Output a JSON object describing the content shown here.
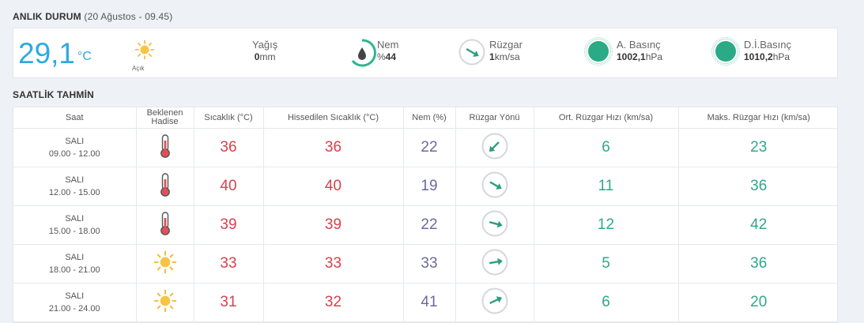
{
  "current": {
    "title": "ANLIK DURUM",
    "subtitle": "(20 Ağustos - 09.45)",
    "temp": "29,1",
    "temp_unit": "°C",
    "condition": "Açık",
    "precip_label": "Yağış",
    "precip_value": "0",
    "precip_unit": "mm",
    "humidity_label": "Nem",
    "humidity_prefix": "%",
    "humidity_value": "44",
    "wind_label": "Rüzgar",
    "wind_value": "1",
    "wind_unit": "km/sa",
    "pressure_label": "A. Basınç",
    "pressure_value": "1002,1",
    "pressure_unit": "hPa",
    "sea_pressure_label": "D.İ.Basınç",
    "sea_pressure_value": "1010,2",
    "sea_pressure_unit": "hPa"
  },
  "hourly": {
    "title": "SAATLİK TAHMİN",
    "headers": {
      "time": "Saat",
      "event_line1": "Beklenen",
      "event_line2": "Hadise",
      "temp": "Sıcaklık (°C)",
      "feels": "Hissedilen Sıcaklık (°C)",
      "humidity": "Nem (%)",
      "wind_dir": "Rüzgar Yönü",
      "wind_avg": "Ort. Rüzgar Hızı (km/sa)",
      "wind_max": "Maks. Rüzgar Hızı (km/sa)"
    },
    "rows": [
      {
        "day": "SALI",
        "range": "09.00 - 12.00",
        "icon": "thermometer-icon",
        "temp": "36",
        "feels": "36",
        "humidity": "22",
        "wind_deg": 225,
        "wind_avg": "6",
        "wind_max": "23"
      },
      {
        "day": "SALI",
        "range": "12.00 - 15.00",
        "icon": "thermometer-icon",
        "temp": "40",
        "feels": "40",
        "humidity": "19",
        "wind_deg": 120,
        "wind_avg": "11",
        "wind_max": "36"
      },
      {
        "day": "SALI",
        "range": "15.00 - 18.00",
        "icon": "thermometer-icon",
        "temp": "39",
        "feels": "39",
        "humidity": "22",
        "wind_deg": 105,
        "wind_avg": "12",
        "wind_max": "42"
      },
      {
        "day": "SALI",
        "range": "18.00 - 21.00",
        "icon": "sun-icon",
        "temp": "33",
        "feels": "33",
        "humidity": "33",
        "wind_deg": 80,
        "wind_avg": "5",
        "wind_max": "36"
      },
      {
        "day": "SALI",
        "range": "21.00 - 24.00",
        "icon": "sun-icon",
        "temp": "31",
        "feels": "32",
        "humidity": "41",
        "wind_deg": 65,
        "wind_avg": "6",
        "wind_max": "20"
      }
    ]
  },
  "colors": {
    "accent_blue": "#2eaadf",
    "temp_red": "#d9404c",
    "humidity_purple": "#6b6b9a",
    "wind_green": "#31a787"
  }
}
